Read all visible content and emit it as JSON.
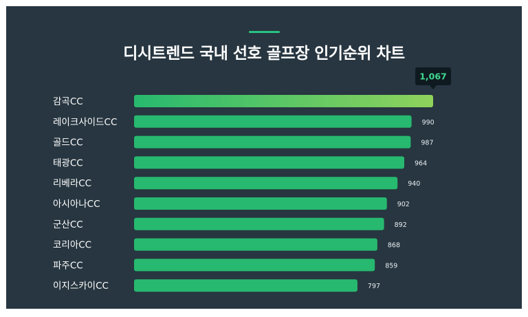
{
  "title": "디시트렌드 국내 선호 골프장 인기순위 차트",
  "colors": {
    "background": "#273640",
    "accent": "#29c281",
    "bar_start": "#27b96f",
    "bar_end": "#8fd35c",
    "top_badge_bg": "#0f1a20"
  },
  "chart_data": {
    "type": "bar",
    "orientation": "horizontal",
    "title": "디시트렌드 국내 선호 골프장 인기순위 차트",
    "categories": [
      "감곡CC",
      "레이크사이드CC",
      "골드CC",
      "태광CC",
      "리베라CC",
      "아시아나CC",
      "군산CC",
      "코리아CC",
      "파주CC",
      "이지스카이CC"
    ],
    "values": [
      1067,
      990,
      987,
      964,
      940,
      902,
      892,
      868,
      859,
      797
    ],
    "value_labels": [
      "1,067",
      "990",
      "987",
      "964",
      "940",
      "902",
      "892",
      "868",
      "859",
      "797"
    ],
    "xlim": [
      0,
      1067
    ],
    "grid": false,
    "legend": "none"
  }
}
